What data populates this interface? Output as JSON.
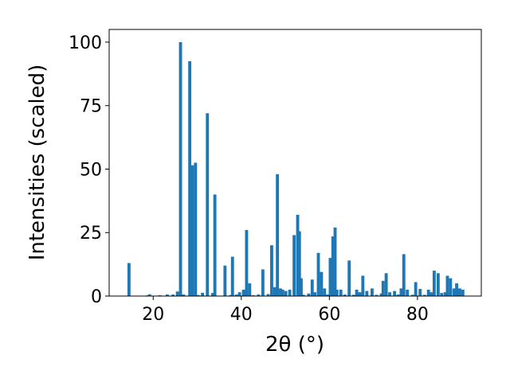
{
  "chart_data": {
    "type": "bar",
    "xlabel": "2θ (°)",
    "ylabel": "Intensities (scaled)",
    "title": "",
    "xlim": [
      10,
      94.5
    ],
    "ylim": [
      0,
      105
    ],
    "xticks": [
      20,
      40,
      60,
      80
    ],
    "yticks": [
      0,
      25,
      50,
      75,
      100
    ],
    "grid": false,
    "legend": "none",
    "color": "#1f77b4",
    "bar_width_deg": 0.7,
    "x": [
      14.5,
      18.8,
      19.2,
      21.5,
      23.2,
      24.5,
      25.5,
      26.2,
      26.9,
      28.3,
      28.9,
      29.6,
      30.2,
      31.2,
      32.3,
      33.5,
      34.0,
      36.3,
      37.6,
      38.0,
      38.9,
      39.6,
      40.5,
      41.2,
      41.9,
      42.7,
      43.9,
      44.9,
      46.1,
      46.9,
      47.6,
      48.2,
      48.9,
      49.4,
      50.1,
      51.0,
      52.0,
      52.8,
      53.2,
      53.6,
      54.1,
      55.3,
      56.1,
      56.7,
      57.5,
      58.2,
      58.9,
      59.6,
      60.2,
      60.8,
      61.3,
      61.7,
      62.6,
      63.5,
      64.5,
      65.5,
      66.2,
      66.9,
      67.6,
      68.5,
      69.7,
      70.7,
      71.8,
      72.2,
      72.9,
      73.7,
      74.8,
      75.6,
      76.3,
      76.9,
      77.7,
      78.9,
      79.6,
      80.6,
      81.6,
      82.5,
      83.1,
      83.8,
      84.7,
      85.5,
      86.3,
      86.8,
      87.5,
      88.3,
      88.9,
      89.6,
      90.3
    ],
    "values": [
      13,
      0.3,
      0.7,
      0.3,
      0.6,
      0.6,
      1.8,
      100,
      0.6,
      92.5,
      51.5,
      52.5,
      0.4,
      1.3,
      72,
      1.2,
      40,
      12,
      0.4,
      15.5,
      0.6,
      1.5,
      2.5,
      26,
      5,
      0.3,
      0.6,
      10.5,
      0.8,
      20,
      3.5,
      48,
      3,
      2.5,
      2,
      2.5,
      24,
      32,
      25.5,
      7,
      0.5,
      1,
      6.5,
      1.5,
      17,
      9.5,
      3,
      0.6,
      15,
      23.5,
      27,
      2.5,
      2.5,
      0.6,
      14,
      0.5,
      2.5,
      1.5,
      8,
      2,
      3,
      0.5,
      1,
      6,
      9,
      1.5,
      2,
      0.6,
      3,
      16.5,
      2.5,
      0.5,
      5.5,
      2.8,
      0.5,
      2.5,
      1.5,
      10,
      9,
      1.2,
      1.5,
      8,
      7,
      3,
      5,
      3,
      2.5
    ]
  }
}
